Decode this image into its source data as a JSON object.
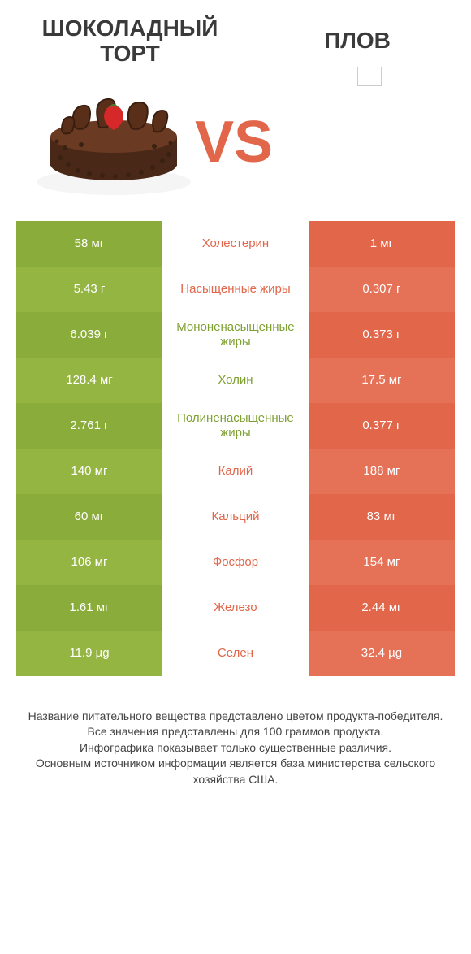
{
  "header": {
    "left_title": "ШОКОЛАДНЫЙ ТОРТ",
    "right_title": "ПЛОВ",
    "vs_label": "VS"
  },
  "colors": {
    "green_dark": "#8aac3a",
    "green_light": "#95b543",
    "orange_dark": "#e1664a",
    "orange_light": "#e57157",
    "text_dark": "#3a3a3a",
    "background": "#ffffff"
  },
  "table": {
    "rows": [
      {
        "left": "58 мг",
        "label": "Холестерин",
        "right": "1 мг",
        "winner": "orange"
      },
      {
        "left": "5.43 г",
        "label": "Насыщенные жиры",
        "right": "0.307 г",
        "winner": "orange"
      },
      {
        "left": "6.039 г",
        "label": "Мононенасыщенные жиры",
        "right": "0.373 г",
        "winner": "green"
      },
      {
        "left": "128.4 мг",
        "label": "Холин",
        "right": "17.5 мг",
        "winner": "green"
      },
      {
        "left": "2.761 г",
        "label": "Полиненасыщенные жиры",
        "right": "0.377 г",
        "winner": "green"
      },
      {
        "left": "140 мг",
        "label": "Калий",
        "right": "188 мг",
        "winner": "orange"
      },
      {
        "left": "60 мг",
        "label": "Кальций",
        "right": "83 мг",
        "winner": "orange"
      },
      {
        "left": "106 мг",
        "label": "Фосфор",
        "right": "154 мг",
        "winner": "orange"
      },
      {
        "left": "1.61 мг",
        "label": "Железо",
        "right": "2.44 мг",
        "winner": "orange"
      },
      {
        "left": "11.9 µg",
        "label": "Селен",
        "right": "32.4 µg",
        "winner": "orange"
      }
    ]
  },
  "footer": {
    "line1": "Название питательного вещества представлено цветом продукта-победителя.",
    "line2": "Все значения представлены для 100 граммов продукта.",
    "line3": "Инфографика показывает только существенные различия.",
    "line4": "Основным источником информации является база министерства сельского хозяйства США."
  },
  "cake_svg": {
    "plate_fill": "#f5f5f5",
    "body_fill": "#4a2817",
    "body_stroke": "#2e1a0e",
    "frosting_fill": "#6b3a22",
    "chip_fill": "#3a2112",
    "curl_fill": "#5a2f1a",
    "curl_stroke": "#3a1e10",
    "strawberry_fill": "#d62828",
    "strawberry_leaf": "#4a7c2c"
  }
}
